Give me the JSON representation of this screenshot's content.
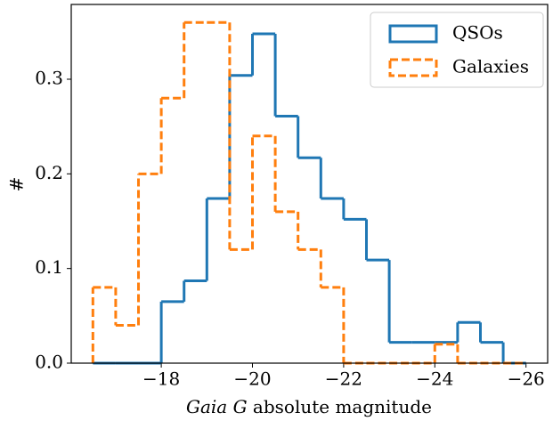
{
  "chart_data": {
    "type": "step-histogram",
    "xlabel": [
      "Gaia G",
      "absolute magnitude"
    ],
    "ylabel": "#",
    "bins": [
      -16.5,
      -17,
      -17.5,
      -18,
      -18.5,
      -19,
      -19.5,
      -20,
      -20.5,
      -21,
      -21.5,
      -22,
      -22.5,
      -23,
      -23.5,
      -24,
      -24.5,
      -25,
      -25.5,
      -26
    ],
    "series": [
      {
        "name": "QSOs",
        "color": "#1f77b4",
        "linestyle": "solid",
        "values": [
          0,
          0,
          0,
          0.065,
          0.087,
          0.174,
          0.304,
          0.348,
          0.261,
          0.217,
          0.174,
          0.152,
          0.109,
          0.022,
          0.022,
          0.022,
          0.043,
          0.022,
          0
        ]
      },
      {
        "name": "Galaxies",
        "color": "#ff7f0e",
        "linestyle": "dashed",
        "values": [
          0.08,
          0.04,
          0.2,
          0.28,
          0.36,
          0.36,
          0.12,
          0.24,
          0.16,
          0.12,
          0.08,
          0,
          0,
          0,
          0,
          0.02,
          0,
          0,
          0
        ]
      }
    ],
    "xlim": [
      -16.025,
      -26.475
    ],
    "xticks": [
      {
        "value": -18,
        "label": "−18"
      },
      {
        "value": -20,
        "label": "−20"
      },
      {
        "value": -22,
        "label": "−22"
      },
      {
        "value": -24,
        "label": "−24"
      },
      {
        "value": -26,
        "label": "−26"
      }
    ],
    "ylim": [
      0,
      0.379
    ],
    "yticks": [
      {
        "value": 0,
        "label": "0.0"
      },
      0.1,
      0.2,
      0.3
    ],
    "legend": "upper right"
  }
}
